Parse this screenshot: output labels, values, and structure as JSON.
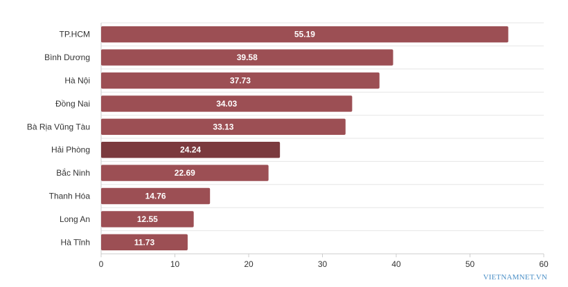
{
  "chart_data": {
    "type": "bar",
    "orientation": "horizontal",
    "categories": [
      "TP.HCM",
      "Bình Dương",
      "Hà Nội",
      "Đồng Nai",
      "Bà Rịa Vũng Tàu",
      "Hải Phòng",
      "Bắc Ninh",
      "Thanh Hóa",
      "Long An",
      "Hà Tĩnh"
    ],
    "values": [
      55.19,
      39.58,
      37.73,
      34.03,
      33.13,
      24.24,
      22.69,
      14.76,
      12.55,
      11.73
    ],
    "data_labels": [
      "55.19",
      "39.58",
      "37.73",
      "34.03",
      "33.13",
      "24.24",
      "22.69",
      "14.76",
      "12.55",
      "11.73"
    ],
    "highlight_category": "Hải Phòng",
    "xlim": [
      0,
      60
    ],
    "x_ticks": [
      0,
      10,
      20,
      30,
      40,
      50,
      60
    ],
    "x_tick_labels": [
      "0",
      "10",
      "20",
      "30",
      "40",
      "50",
      "60"
    ],
    "grid": true,
    "colors": {
      "bar": "#9c4f54",
      "bar_highlight": "#7b3a3e",
      "grid": "#e6e6e6",
      "axis": "#cccccc"
    }
  },
  "watermark": "VIETNAMNET.VN"
}
